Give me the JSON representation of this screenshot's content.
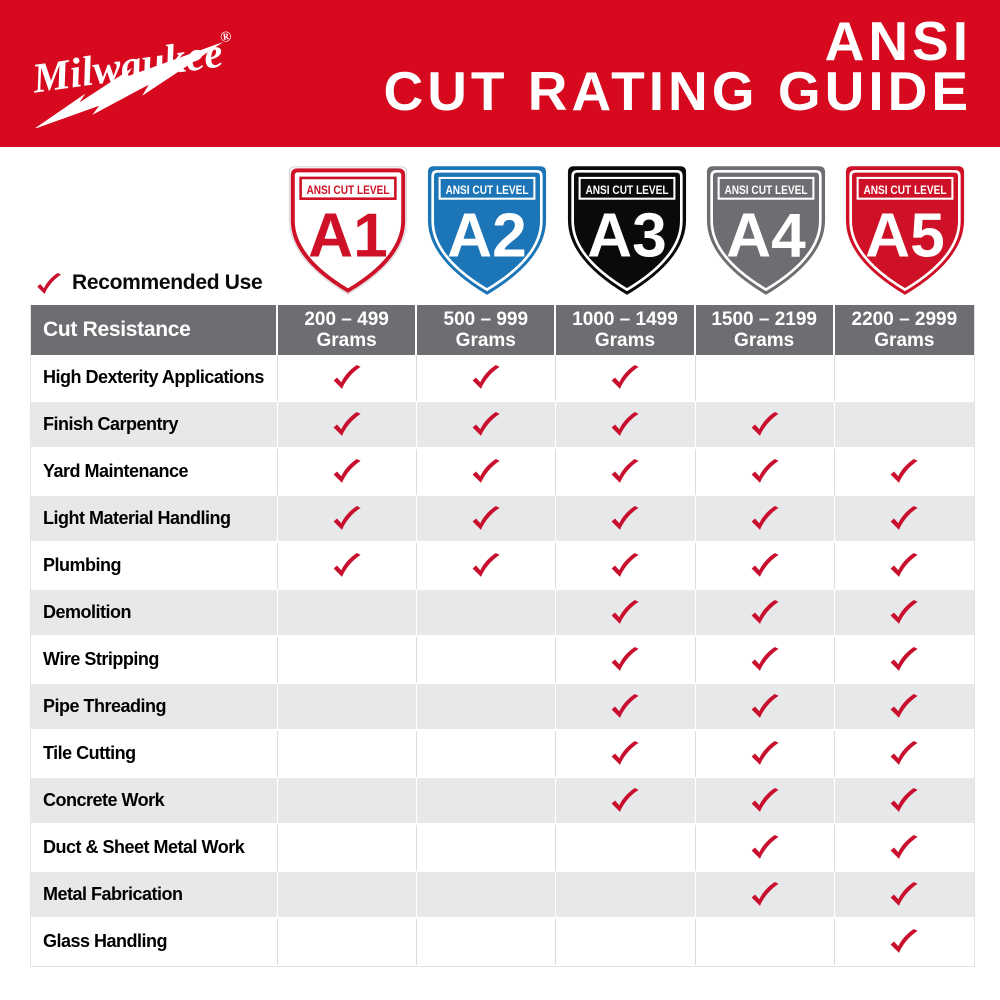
{
  "brand": {
    "logo_text": "Milwaukee",
    "registered_mark": "®",
    "logo_color": "#FFFFFF"
  },
  "header": {
    "title_line1": "ANSI",
    "title_line2": "CUT RATING GUIDE",
    "background_color": "#D6091E",
    "text_color": "#FFFFFF"
  },
  "shields": [
    {
      "level": "A1",
      "band_label": "ANSI CUT LEVEL",
      "fill": "#FFFFFF",
      "accent": "#CE1126",
      "letter_color": "#CE1126",
      "variant": "light"
    },
    {
      "level": "A2",
      "band_label": "ANSI CUT LEVEL",
      "fill": "#1B75B7",
      "accent": "#FFFFFF",
      "letter_color": "#FFFFFF",
      "variant": "dark"
    },
    {
      "level": "A3",
      "band_label": "ANSI CUT LEVEL",
      "fill": "#0A0A0A",
      "accent": "#FFFFFF",
      "letter_color": "#FFFFFF",
      "variant": "dark"
    },
    {
      "level": "A4",
      "band_label": "ANSI CUT LEVEL",
      "fill": "#6D6E71",
      "accent": "#FFFFFF",
      "letter_color": "#FFFFFF",
      "variant": "dark"
    },
    {
      "level": "A5",
      "band_label": "ANSI CUT LEVEL",
      "fill": "#CE1126",
      "accent": "#FFFFFF",
      "letter_color": "#FFFFFF",
      "variant": "dark"
    }
  ],
  "legend": {
    "label": "Recommended Use",
    "check_color": "#C8102E"
  },
  "table": {
    "corner_header": "Cut Resistance",
    "column_headers": [
      {
        "range": "200 – 499",
        "unit": "Grams"
      },
      {
        "range": "500 – 999",
        "unit": "Grams"
      },
      {
        "range": "1000 – 1499",
        "unit": "Grams"
      },
      {
        "range": "1500 – 2199",
        "unit": "Grams"
      },
      {
        "range": "2200 – 2999",
        "unit": "Grams"
      }
    ],
    "rows": [
      {
        "label": "High Dexterity Applications",
        "checks": [
          true,
          true,
          true,
          false,
          false
        ]
      },
      {
        "label": "Finish Carpentry",
        "checks": [
          true,
          true,
          true,
          true,
          false
        ]
      },
      {
        "label": "Yard Maintenance",
        "checks": [
          true,
          true,
          true,
          true,
          true
        ]
      },
      {
        "label": "Light Material Handling",
        "checks": [
          true,
          true,
          true,
          true,
          true
        ]
      },
      {
        "label": "Plumbing",
        "checks": [
          true,
          true,
          true,
          true,
          true
        ]
      },
      {
        "label": "Demolition",
        "checks": [
          false,
          false,
          true,
          true,
          true
        ]
      },
      {
        "label": "Wire Stripping",
        "checks": [
          false,
          false,
          true,
          true,
          true
        ]
      },
      {
        "label": "Pipe Threading",
        "checks": [
          false,
          false,
          true,
          true,
          true
        ]
      },
      {
        "label": "Tile Cutting",
        "checks": [
          false,
          false,
          true,
          true,
          true
        ]
      },
      {
        "label": "Concrete Work",
        "checks": [
          false,
          false,
          true,
          true,
          true
        ]
      },
      {
        "label": "Duct & Sheet Metal Work",
        "checks": [
          false,
          false,
          false,
          true,
          true
        ]
      },
      {
        "label": "Metal Fabrication",
        "checks": [
          false,
          false,
          false,
          true,
          true
        ]
      },
      {
        "label": "Glass Handling",
        "checks": [
          false,
          false,
          false,
          false,
          true
        ]
      }
    ],
    "colors": {
      "header_bg": "#6D6E71",
      "header_text": "#FFFFFF",
      "row_bg": "#FFFFFF",
      "row_alt_bg": "#E7E8E9",
      "label_text": "#000000",
      "check": "#C8102E"
    }
  }
}
